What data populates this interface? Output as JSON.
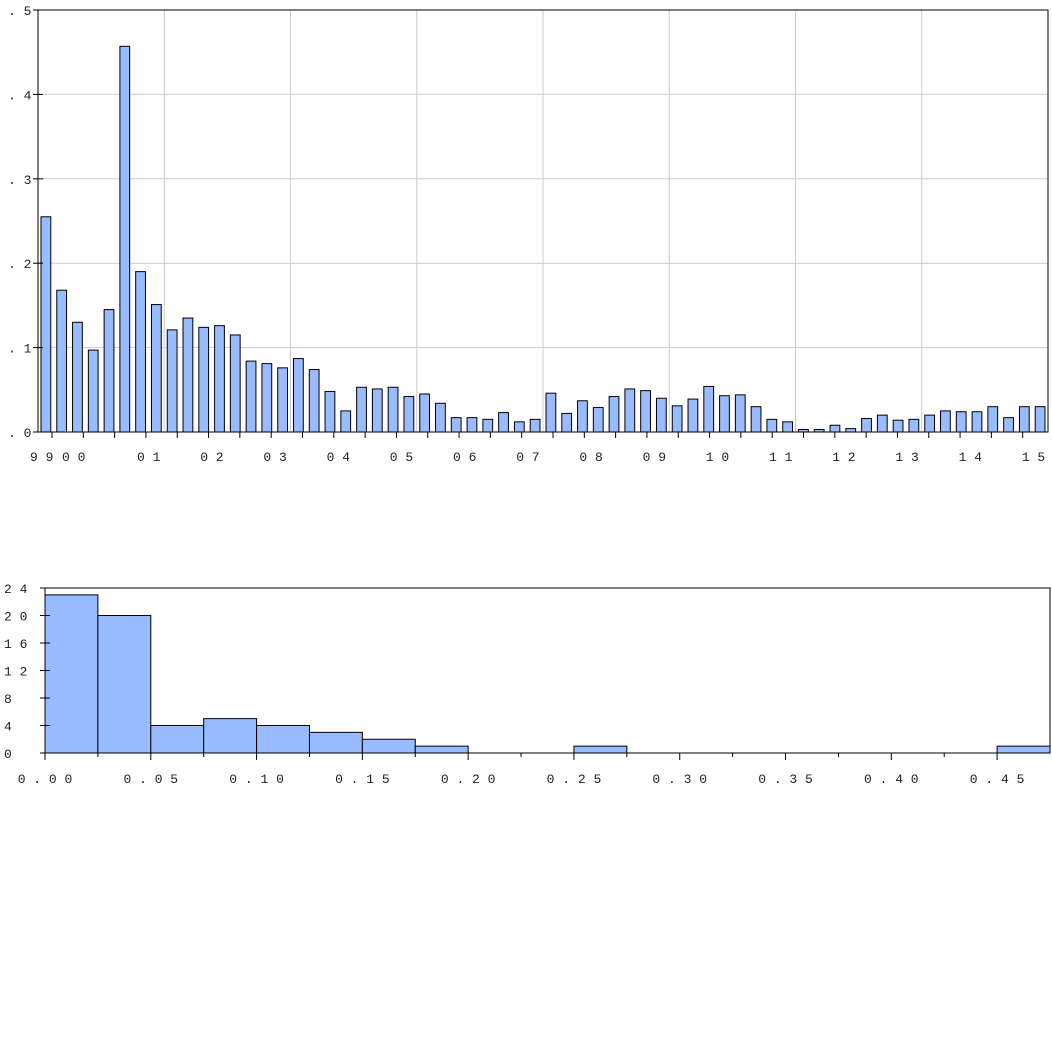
{
  "chart_data": [
    {
      "type": "bar",
      "title": "",
      "xlabel": "",
      "ylabel": "",
      "ylim": [
        0,
        0.5
      ],
      "grid": true,
      "color": "#99bbff",
      "edge_color": "#000000",
      "ytick_labels": [
        ".0",
        ".1",
        ".2",
        ".3",
        ".4",
        ".5"
      ],
      "ytick_values": [
        0,
        0.1,
        0.2,
        0.3,
        0.4,
        0.5
      ],
      "xtick_labels": [
        "99",
        "00",
        "01",
        "02",
        "03",
        "04",
        "05",
        "06",
        "07",
        "08",
        "09",
        "10",
        "11",
        "12",
        "13",
        "14",
        "15"
      ],
      "values": [
        0.255,
        0.168,
        0.13,
        0.097,
        0.145,
        0.457,
        0.19,
        0.151,
        0.121,
        0.135,
        0.124,
        0.126,
        0.115,
        0.084,
        0.081,
        0.076,
        0.087,
        0.074,
        0.048,
        0.025,
        0.053,
        0.051,
        0.053,
        0.042,
        0.045,
        0.034,
        0.017,
        0.017,
        0.015,
        0.023,
        0.012,
        0.015,
        0.046,
        0.022,
        0.037,
        0.029,
        0.042,
        0.051,
        0.049,
        0.04,
        0.031,
        0.039,
        0.054,
        0.043,
        0.044,
        0.03,
        0.015,
        0.012,
        0.003,
        0.003,
        0.008,
        0.004,
        0.016,
        0.02,
        0.014,
        0.015,
        0.02,
        0.025,
        0.024,
        0.024,
        0.03,
        0.017,
        0.03,
        0.03
      ]
    },
    {
      "type": "bar",
      "title": "",
      "xlabel": "",
      "ylabel": "",
      "ylim": [
        0,
        24
      ],
      "xlim": [
        0,
        0.475
      ],
      "grid": false,
      "color": "#99bbff",
      "edge_color": "#000000",
      "ytick_labels": [
        "0",
        "4",
        "8",
        "12",
        "16",
        "20",
        "24"
      ],
      "ytick_values": [
        0,
        4,
        8,
        12,
        16,
        20,
        24
      ],
      "xtick_labels": [
        "0.00",
        "0.05",
        "0.10",
        "0.15",
        "0.20",
        "0.25",
        "0.30",
        "0.35",
        "0.40",
        "0.45"
      ],
      "xtick_values": [
        0,
        0.05,
        0.1,
        0.15,
        0.2,
        0.25,
        0.3,
        0.35,
        0.4,
        0.45
      ],
      "bin_width": 0.025,
      "bin_starts": [
        0.0,
        0.025,
        0.05,
        0.075,
        0.1,
        0.125,
        0.15,
        0.175,
        0.2,
        0.225,
        0.25,
        0.275,
        0.3,
        0.325,
        0.35,
        0.375,
        0.4,
        0.425,
        0.45
      ],
      "values": [
        23,
        20,
        4,
        5,
        4,
        3,
        2,
        1,
        0,
        0,
        1,
        0,
        0,
        0,
        0,
        0,
        0,
        0,
        1
      ]
    }
  ]
}
